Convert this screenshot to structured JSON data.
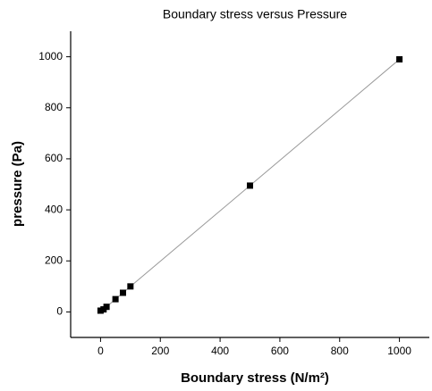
{
  "chart_data": {
    "type": "scatter",
    "title": "Boundary stress versus Pressure",
    "xlabel": "Boundary stress (N/m²)",
    "ylabel": "pressure (Pa)",
    "x": [
      0,
      10,
      20,
      50,
      75,
      100,
      500,
      1000
    ],
    "series": [
      {
        "color": "#000000",
        "line_color": "#999999",
        "values": [
          5,
          10,
          20,
          50,
          75,
          100,
          495,
          990
        ]
      }
    ],
    "xlim": [
      -100,
      1100
    ],
    "xticks": [
      0,
      200,
      400,
      600,
      800,
      1000
    ],
    "ylim": [
      -100,
      1100
    ],
    "yticks": [
      0,
      200,
      400,
      600,
      800,
      1000
    ],
    "grid": false
  }
}
